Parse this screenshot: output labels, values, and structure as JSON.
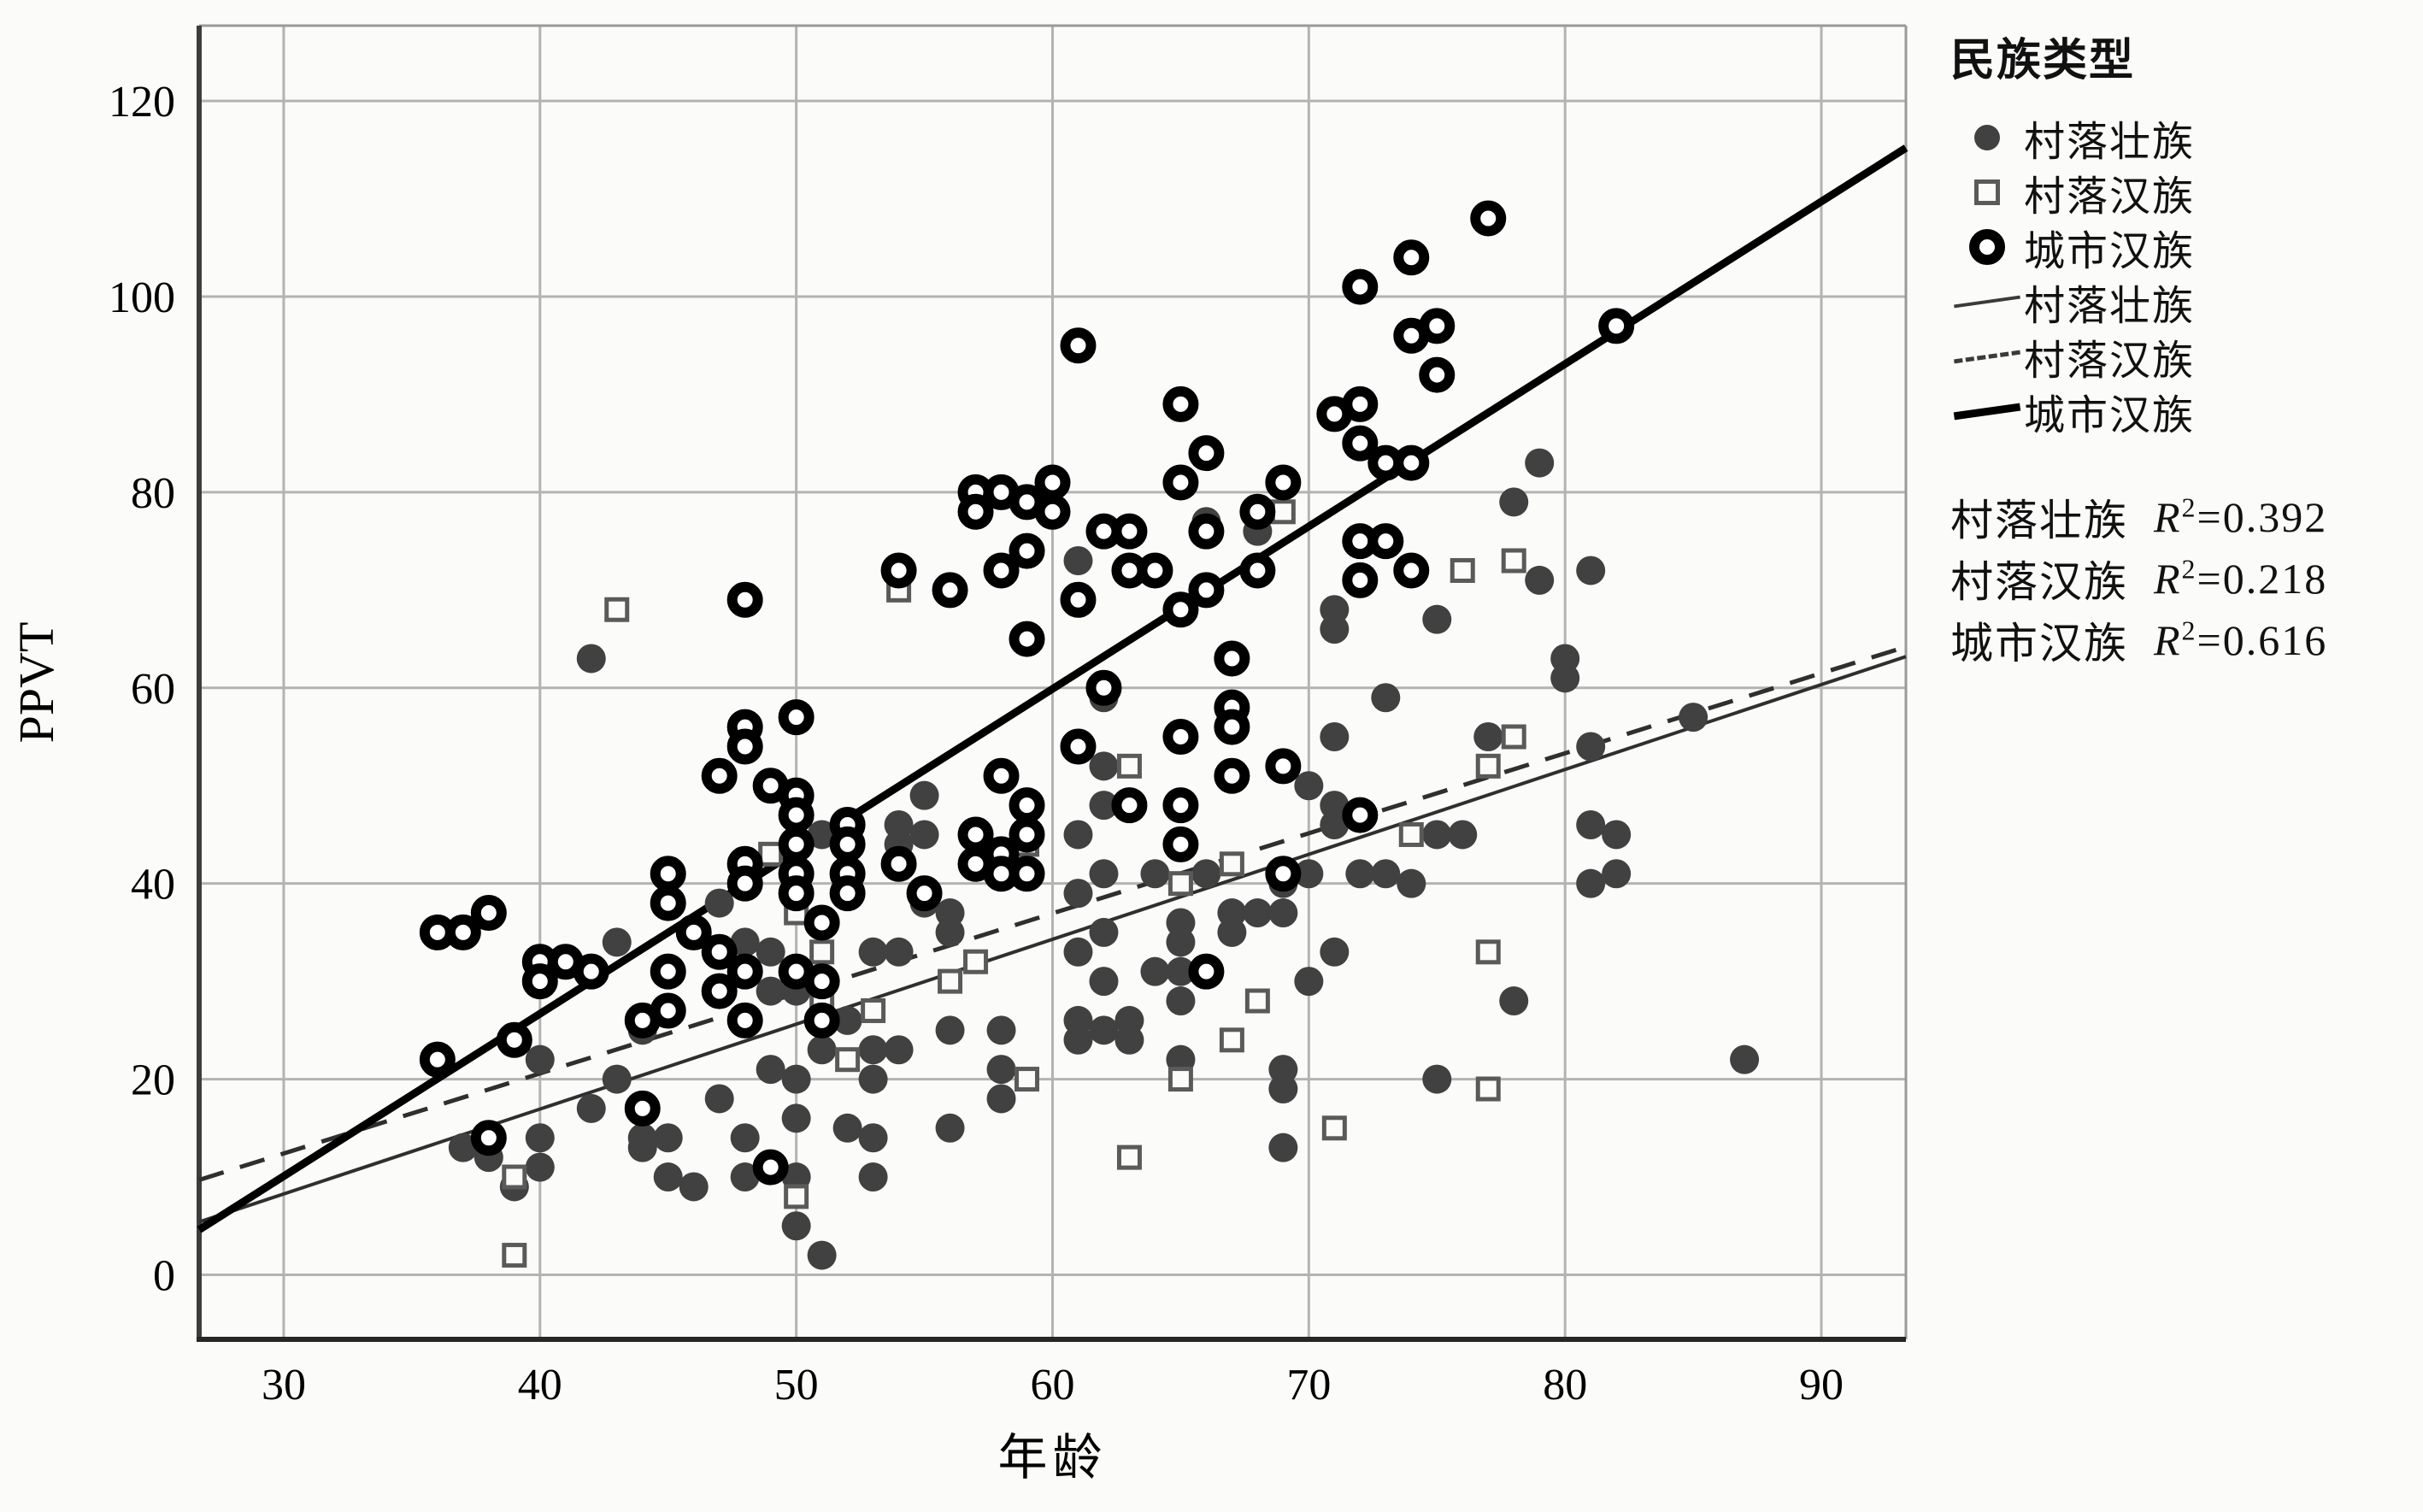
{
  "figure": {
    "xlabel": "年龄",
    "ylabel": "PPVT",
    "legend": {
      "title": "民族类型",
      "items": [
        {
          "label": "村落壮族",
          "marker": "filled-circle"
        },
        {
          "label": "村落汉族",
          "marker": "open-square"
        },
        {
          "label": "城市汉族",
          "marker": "bold-open-circle"
        },
        {
          "label": "村落壮族",
          "marker": "thin-solid-line"
        },
        {
          "label": "村落汉族",
          "marker": "dashed-line"
        },
        {
          "label": "城市汉族",
          "marker": "thick-solid-line"
        }
      ],
      "r2_rows": [
        {
          "label": "村落壮族",
          "r_symbol": "R",
          "sup": "2",
          "value": "=0.392"
        },
        {
          "label": "村落汉族",
          "r_symbol": "R",
          "sup": "2",
          "value": "=0.218"
        },
        {
          "label": "城市汉族",
          "r_symbol": "R",
          "sup": "2",
          "value": "=0.616"
        }
      ]
    }
  },
  "chart_data": {
    "type": "scatter",
    "title": "",
    "xlabel": "年龄",
    "ylabel": "PPVT",
    "xlim": [
      26.7,
      93.3
    ],
    "ylim": [
      -6.6,
      127.7
    ],
    "xticks": [
      30,
      40,
      50,
      60,
      70,
      80,
      90
    ],
    "yticks": [
      0,
      20,
      40,
      60,
      80,
      100,
      120
    ],
    "grid": true,
    "legend_position": "right",
    "series": [
      {
        "name": "村落壮族",
        "marker": "filled-circle",
        "color": "#414141",
        "points": [
          [
            37,
            13
          ],
          [
            38,
            12
          ],
          [
            39,
            9
          ],
          [
            40,
            22
          ],
          [
            40,
            14
          ],
          [
            40,
            11
          ],
          [
            42,
            63
          ],
          [
            42,
            17
          ],
          [
            43,
            34
          ],
          [
            43,
            20
          ],
          [
            44,
            25
          ],
          [
            44,
            14
          ],
          [
            44,
            13
          ],
          [
            45,
            14
          ],
          [
            45,
            10
          ],
          [
            46,
            9
          ],
          [
            47,
            38
          ],
          [
            47,
            18
          ],
          [
            48,
            34
          ],
          [
            48,
            14
          ],
          [
            48,
            10
          ],
          [
            49,
            33
          ],
          [
            49,
            29
          ],
          [
            49,
            21
          ],
          [
            50,
            29
          ],
          [
            50,
            20
          ],
          [
            50,
            16
          ],
          [
            50,
            10
          ],
          [
            50,
            5
          ],
          [
            51,
            45
          ],
          [
            51,
            23
          ],
          [
            51,
            2
          ],
          [
            52,
            26
          ],
          [
            52,
            15
          ],
          [
            53,
            33
          ],
          [
            53,
            23
          ],
          [
            53,
            20
          ],
          [
            53,
            14
          ],
          [
            53,
            10
          ],
          [
            54,
            46
          ],
          [
            54,
            44
          ],
          [
            54,
            33
          ],
          [
            54,
            23
          ],
          [
            55,
            49
          ],
          [
            55,
            45
          ],
          [
            55,
            38
          ],
          [
            56,
            37
          ],
          [
            56,
            35
          ],
          [
            56,
            25
          ],
          [
            56,
            15
          ],
          [
            58,
            25
          ],
          [
            58,
            21
          ],
          [
            58,
            18
          ],
          [
            61,
            73
          ],
          [
            61,
            45
          ],
          [
            61,
            39
          ],
          [
            61,
            33
          ],
          [
            61,
            26
          ],
          [
            61,
            24
          ],
          [
            62,
            59
          ],
          [
            62,
            52
          ],
          [
            62,
            48
          ],
          [
            62,
            41
          ],
          [
            62,
            35
          ],
          [
            62,
            30
          ],
          [
            62,
            25
          ],
          [
            63,
            26
          ],
          [
            63,
            24
          ],
          [
            64,
            41
          ],
          [
            64,
            31
          ],
          [
            65,
            36
          ],
          [
            65,
            34
          ],
          [
            65,
            31
          ],
          [
            65,
            28
          ],
          [
            65,
            22
          ],
          [
            66,
            77
          ],
          [
            66,
            41
          ],
          [
            67,
            37
          ],
          [
            67,
            35
          ],
          [
            68,
            76
          ],
          [
            68,
            37
          ],
          [
            69,
            40
          ],
          [
            69,
            37
          ],
          [
            69,
            21
          ],
          [
            69,
            19
          ],
          [
            69,
            13
          ],
          [
            70,
            50
          ],
          [
            70,
            41
          ],
          [
            70,
            30
          ],
          [
            71,
            68
          ],
          [
            71,
            66
          ],
          [
            71,
            55
          ],
          [
            71,
            48
          ],
          [
            71,
            46
          ],
          [
            71,
            33
          ],
          [
            72,
            41
          ],
          [
            73,
            59
          ],
          [
            73,
            41
          ],
          [
            74,
            40
          ],
          [
            75,
            67
          ],
          [
            75,
            45
          ],
          [
            75,
            20
          ],
          [
            76,
            45
          ],
          [
            77,
            55
          ],
          [
            78,
            79
          ],
          [
            78,
            28
          ],
          [
            79,
            83
          ],
          [
            79,
            71
          ],
          [
            80,
            63
          ],
          [
            80,
            61
          ],
          [
            81,
            72
          ],
          [
            81,
            54
          ],
          [
            81,
            46
          ],
          [
            81,
            40
          ],
          [
            82,
            45
          ],
          [
            82,
            41
          ],
          [
            85,
            57
          ],
          [
            87,
            22
          ]
        ]
      },
      {
        "name": "村落汉族",
        "marker": "open-square",
        "color": "#5a5a5a",
        "points": [
          [
            39,
            2
          ],
          [
            39,
            10
          ],
          [
            40,
            31
          ],
          [
            43,
            68
          ],
          [
            49,
            43
          ],
          [
            50,
            8
          ],
          [
            50,
            37
          ],
          [
            51,
            28
          ],
          [
            51,
            33
          ],
          [
            52,
            22
          ],
          [
            53,
            27
          ],
          [
            54,
            70
          ],
          [
            56,
            30
          ],
          [
            57,
            32
          ],
          [
            59,
            20
          ],
          [
            59,
            44
          ],
          [
            63,
            12
          ],
          [
            63,
            52
          ],
          [
            65,
            20
          ],
          [
            65,
            40
          ],
          [
            67,
            24
          ],
          [
            67,
            42
          ],
          [
            68,
            28
          ],
          [
            69,
            78
          ],
          [
            71,
            15
          ],
          [
            74,
            45
          ],
          [
            76,
            72
          ],
          [
            77,
            19
          ],
          [
            77,
            33
          ],
          [
            77,
            52
          ],
          [
            78,
            55
          ],
          [
            78,
            73
          ]
        ]
      },
      {
        "name": "城市汉族",
        "marker": "bold-open-circle",
        "color": "#000000",
        "points": [
          [
            36,
            35
          ],
          [
            36,
            22
          ],
          [
            37,
            35
          ],
          [
            38,
            37
          ],
          [
            38,
            14
          ],
          [
            39,
            24
          ],
          [
            40,
            32
          ],
          [
            40,
            30
          ],
          [
            41,
            32
          ],
          [
            42,
            31
          ],
          [
            44,
            26
          ],
          [
            44,
            17
          ],
          [
            45,
            41
          ],
          [
            45,
            38
          ],
          [
            45,
            31
          ],
          [
            45,
            27
          ],
          [
            46,
            35
          ],
          [
            47,
            51
          ],
          [
            47,
            33
          ],
          [
            47,
            29
          ],
          [
            48,
            69
          ],
          [
            48,
            56
          ],
          [
            48,
            54
          ],
          [
            48,
            42
          ],
          [
            48,
            40
          ],
          [
            48,
            31
          ],
          [
            48,
            26
          ],
          [
            49,
            50
          ],
          [
            49,
            11
          ],
          [
            50,
            57
          ],
          [
            50,
            49
          ],
          [
            50,
            47
          ],
          [
            50,
            44
          ],
          [
            50,
            41
          ],
          [
            50,
            39
          ],
          [
            50,
            31
          ],
          [
            51,
            36
          ],
          [
            51,
            30
          ],
          [
            51,
            26
          ],
          [
            52,
            46
          ],
          [
            52,
            44
          ],
          [
            52,
            41
          ],
          [
            52,
            39
          ],
          [
            54,
            72
          ],
          [
            54,
            42
          ],
          [
            55,
            39
          ],
          [
            56,
            70
          ],
          [
            57,
            80
          ],
          [
            57,
            78
          ],
          [
            57,
            45
          ],
          [
            57,
            42
          ],
          [
            58,
            80
          ],
          [
            58,
            72
          ],
          [
            58,
            51
          ],
          [
            58,
            43
          ],
          [
            58,
            41
          ],
          [
            59,
            79
          ],
          [
            59,
            74
          ],
          [
            59,
            65
          ],
          [
            59,
            48
          ],
          [
            59,
            45
          ],
          [
            59,
            41
          ],
          [
            60,
            81
          ],
          [
            60,
            78
          ],
          [
            61,
            95
          ],
          [
            61,
            69
          ],
          [
            61,
            54
          ],
          [
            62,
            76
          ],
          [
            62,
            60
          ],
          [
            63,
            76
          ],
          [
            63,
            72
          ],
          [
            63,
            48
          ],
          [
            64,
            72
          ],
          [
            65,
            89
          ],
          [
            65,
            81
          ],
          [
            65,
            68
          ],
          [
            65,
            55
          ],
          [
            65,
            48
          ],
          [
            65,
            44
          ],
          [
            66,
            84
          ],
          [
            66,
            76
          ],
          [
            66,
            70
          ],
          [
            66,
            31
          ],
          [
            67,
            63
          ],
          [
            67,
            58
          ],
          [
            67,
            56
          ],
          [
            67,
            51
          ],
          [
            68,
            78
          ],
          [
            68,
            72
          ],
          [
            69,
            81
          ],
          [
            69,
            52
          ],
          [
            69,
            41
          ],
          [
            71,
            88
          ],
          [
            72,
            101
          ],
          [
            72,
            89
          ],
          [
            72,
            85
          ],
          [
            72,
            75
          ],
          [
            72,
            71
          ],
          [
            72,
            47
          ],
          [
            73,
            83
          ],
          [
            73,
            75
          ],
          [
            74,
            104
          ],
          [
            74,
            96
          ],
          [
            74,
            83
          ],
          [
            74,
            72
          ],
          [
            75,
            97
          ],
          [
            75,
            92
          ],
          [
            77,
            108
          ],
          [
            82,
            97
          ]
        ]
      }
    ],
    "fit_lines": [
      {
        "name": "村落壮族",
        "style": "solid-thin",
        "color": "#2f2f2f",
        "r2": 0.392,
        "x1": 26.7,
        "y1": 5.4,
        "x2": 93.3,
        "y2": 63.2
      },
      {
        "name": "村落汉族",
        "style": "dashed",
        "color": "#2f2f2f",
        "r2": 0.218,
        "x1": 26.7,
        "y1": 9.7,
        "x2": 93.3,
        "y2": 64.2
      },
      {
        "name": "城市汉族",
        "style": "solid-thick",
        "color": "#000000",
        "r2": 0.616,
        "x1": 26.7,
        "y1": 4.6,
        "x2": 93.3,
        "y2": 115.2
      }
    ]
  }
}
